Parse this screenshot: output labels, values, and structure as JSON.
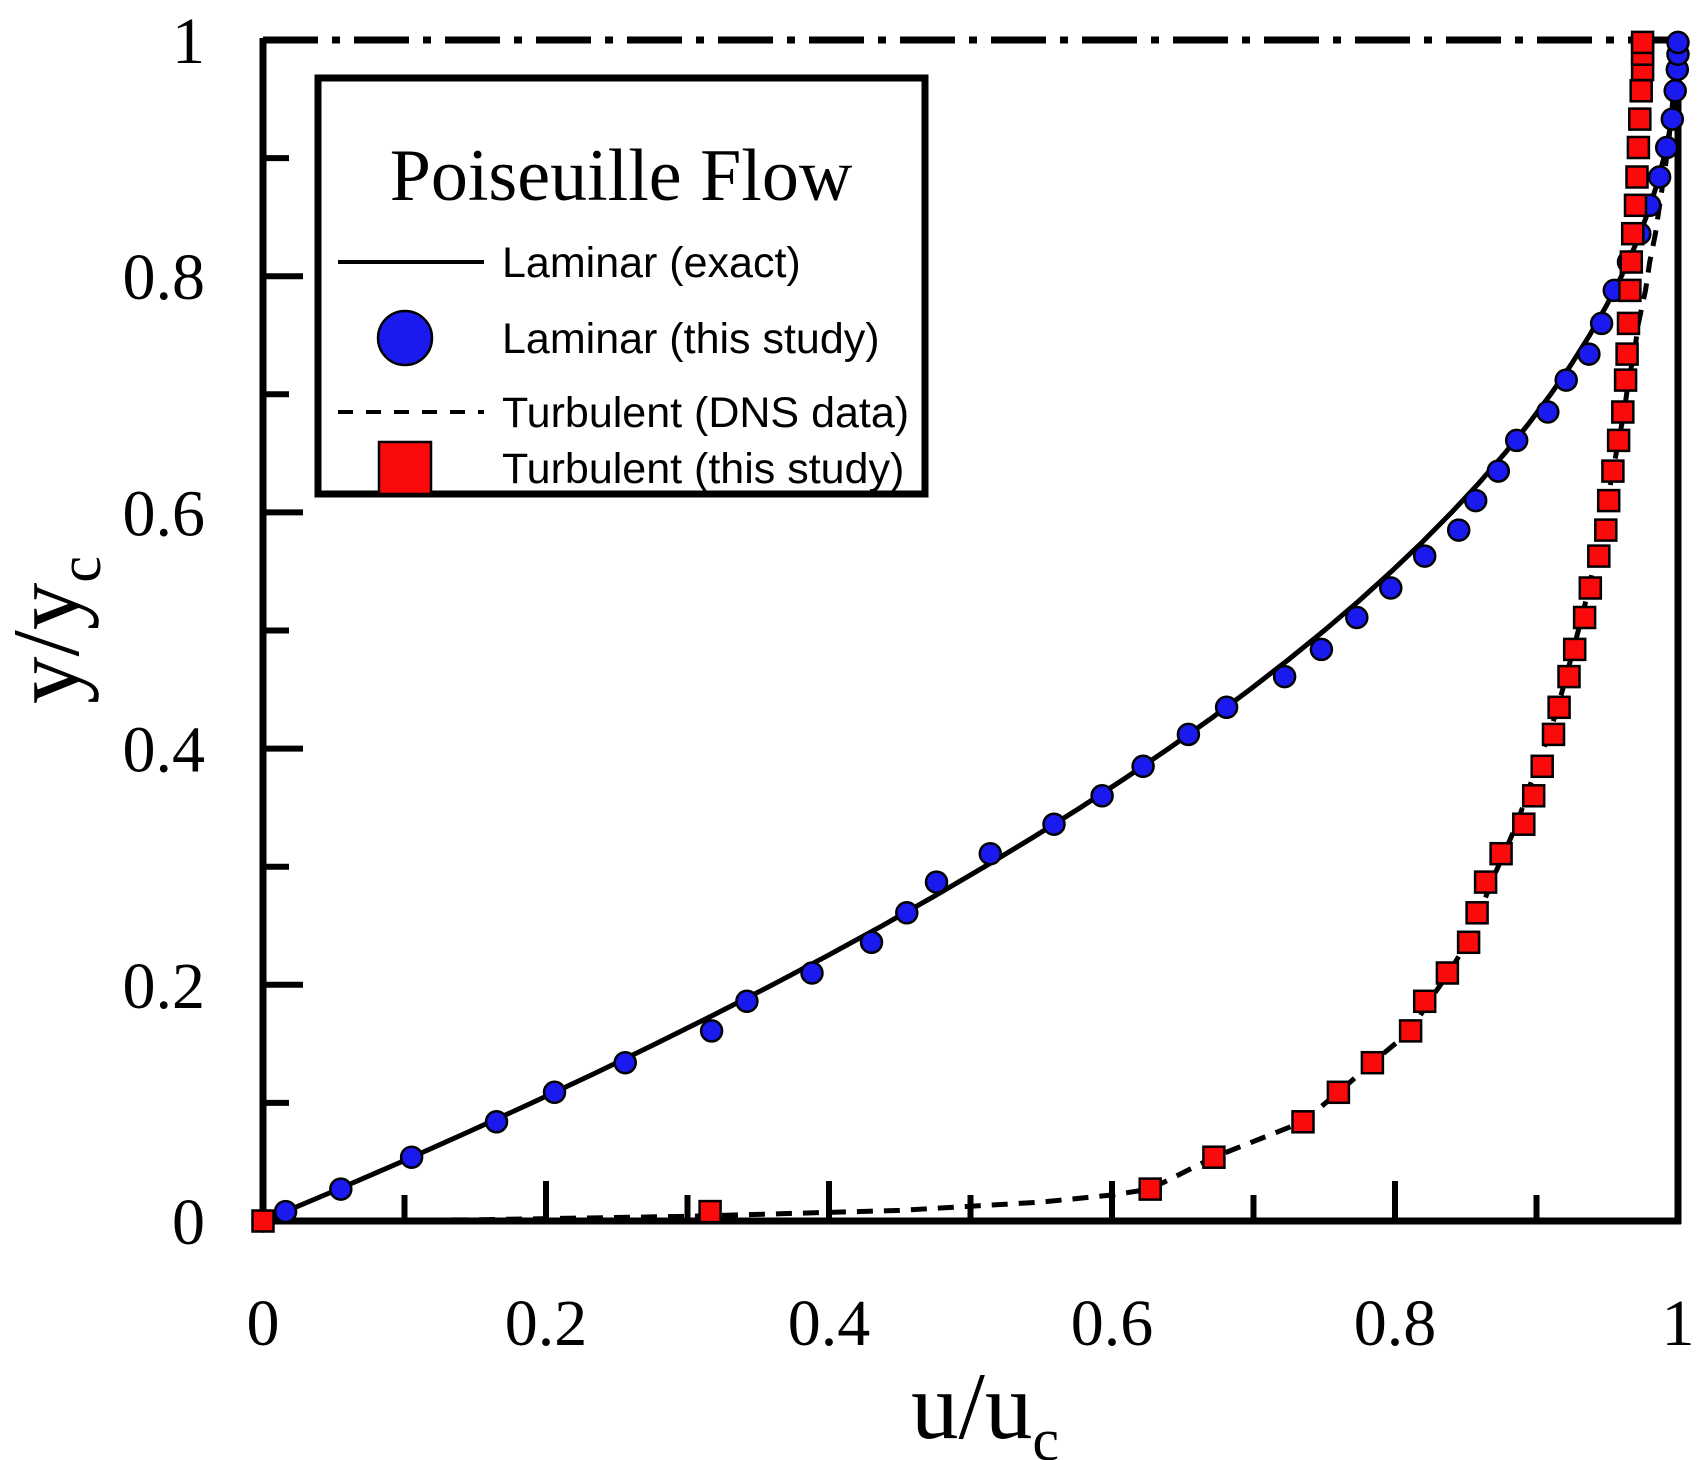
{
  "legend": {
    "title": "Poiseuille Flow",
    "entries": [
      {
        "label": "Laminar (exact)",
        "sample": "solid-line"
      },
      {
        "label": "Laminar (this study)",
        "sample": "blue-circle"
      },
      {
        "label": "Turbulent (DNS data)",
        "sample": "dashed-line"
      },
      {
        "label": "Turbulent (this study)",
        "sample": "red-square"
      }
    ]
  },
  "axes": {
    "x": {
      "label": "u/u_c",
      "label_main": "u/u",
      "label_sub": "c",
      "range": [
        0,
        1
      ],
      "major_ticks": [
        0,
        0.2,
        0.4,
        0.6,
        0.8,
        1
      ],
      "minor_ticks": [
        0.1,
        0.3,
        0.5,
        0.7,
        0.9
      ],
      "tick_labels": [
        "0",
        "0.2",
        "0.4",
        "0.6",
        "0.8",
        "1"
      ]
    },
    "y": {
      "label": "y/y_c",
      "label_main": "y/y",
      "label_sub": "c",
      "range": [
        0,
        1
      ],
      "major_ticks": [
        0,
        0.2,
        0.4,
        0.6,
        0.8,
        1
      ],
      "minor_ticks": [
        0.1,
        0.3,
        0.5,
        0.7,
        0.9
      ],
      "tick_labels": [
        "0",
        "0.2",
        "0.4",
        "0.6",
        "0.8",
        "1"
      ]
    }
  },
  "colors": {
    "laminar_marker": "#1a1aee",
    "turbulent_marker": "#fa0a0a",
    "line": "#000000",
    "background": "#ffffff"
  },
  "chart_data": {
    "type": "scatter",
    "title": "Poiseuille Flow",
    "xlabel": "u/u_c",
    "ylabel": "y/y_c",
    "xlim": [
      0,
      1
    ],
    "ylim": [
      0,
      1
    ],
    "grid": false,
    "legend_position": "upper-left",
    "centerline": {
      "y": 1.0,
      "style": "dash-dot"
    },
    "series": [
      {
        "name": "Laminar (exact)",
        "type": "line",
        "style": "solid",
        "color": "#000000",
        "formula": "u = 2(y/yc) - (y/yc)^2",
        "points": [
          [
            0.0,
            0.0
          ],
          [
            0.0494,
            0.025
          ],
          [
            0.0975,
            0.05
          ],
          [
            0.1444,
            0.075
          ],
          [
            0.19,
            0.1
          ],
          [
            0.2344,
            0.125
          ],
          [
            0.2775,
            0.15
          ],
          [
            0.3194,
            0.175
          ],
          [
            0.36,
            0.2
          ],
          [
            0.3994,
            0.225
          ],
          [
            0.4375,
            0.25
          ],
          [
            0.4744,
            0.275
          ],
          [
            0.51,
            0.3
          ],
          [
            0.5444,
            0.325
          ],
          [
            0.5775,
            0.35
          ],
          [
            0.6094,
            0.375
          ],
          [
            0.64,
            0.4
          ],
          [
            0.6694,
            0.425
          ],
          [
            0.6975,
            0.45
          ],
          [
            0.7244,
            0.475
          ],
          [
            0.75,
            0.5
          ],
          [
            0.7744,
            0.525
          ],
          [
            0.7975,
            0.55
          ],
          [
            0.8194,
            0.575
          ],
          [
            0.84,
            0.6
          ],
          [
            0.8594,
            0.625
          ],
          [
            0.8775,
            0.65
          ],
          [
            0.8944,
            0.675
          ],
          [
            0.91,
            0.7
          ],
          [
            0.9244,
            0.725
          ],
          [
            0.9375,
            0.75
          ],
          [
            0.9494,
            0.775
          ],
          [
            0.96,
            0.8
          ],
          [
            0.9694,
            0.825
          ],
          [
            0.9775,
            0.85
          ],
          [
            0.9844,
            0.875
          ],
          [
            0.99,
            0.9
          ],
          [
            0.9944,
            0.925
          ],
          [
            0.9975,
            0.95
          ],
          [
            0.9994,
            0.975
          ],
          [
            1.0,
            1.0
          ]
        ]
      },
      {
        "name": "Laminar (this study)",
        "type": "scatter",
        "marker": "circle",
        "color": "#1a1aee",
        "points": [
          [
            0.0,
            0.0
          ],
          [
            0.016,
            0.008
          ],
          [
            0.055,
            0.027
          ],
          [
            0.105,
            0.054
          ],
          [
            0.165,
            0.084
          ],
          [
            0.206,
            0.109
          ],
          [
            0.256,
            0.134
          ],
          [
            0.317,
            0.161
          ],
          [
            0.342,
            0.186
          ],
          [
            0.388,
            0.21
          ],
          [
            0.43,
            0.236
          ],
          [
            0.455,
            0.261
          ],
          [
            0.476,
            0.287
          ],
          [
            0.514,
            0.311
          ],
          [
            0.559,
            0.336
          ],
          [
            0.593,
            0.36
          ],
          [
            0.622,
            0.385
          ],
          [
            0.654,
            0.412
          ],
          [
            0.681,
            0.435
          ],
          [
            0.722,
            0.461
          ],
          [
            0.748,
            0.484
          ],
          [
            0.773,
            0.511
          ],
          [
            0.797,
            0.536
          ],
          [
            0.821,
            0.563
          ],
          [
            0.845,
            0.585
          ],
          [
            0.857,
            0.61
          ],
          [
            0.873,
            0.635
          ],
          [
            0.886,
            0.661
          ],
          [
            0.908,
            0.685
          ],
          [
            0.921,
            0.712
          ],
          [
            0.937,
            0.734
          ],
          [
            0.946,
            0.76
          ],
          [
            0.955,
            0.788
          ],
          [
            0.965,
            0.812
          ],
          [
            0.973,
            0.836
          ],
          [
            0.98,
            0.86
          ],
          [
            0.987,
            0.884
          ],
          [
            0.992,
            0.909
          ],
          [
            0.996,
            0.933
          ],
          [
            0.998,
            0.957
          ],
          [
            0.9995,
            0.975
          ],
          [
            1.0,
            0.988
          ],
          [
            1.0,
            0.998
          ]
        ]
      },
      {
        "name": "Turbulent (DNS data)",
        "type": "line",
        "style": "dashed",
        "color": "#000000",
        "points": [
          [
            0.0,
            0.0
          ],
          [
            0.15,
            0.001
          ],
          [
            0.3,
            0.004
          ],
          [
            0.45,
            0.009
          ],
          [
            0.55,
            0.016
          ],
          [
            0.6,
            0.022
          ],
          [
            0.627,
            0.027
          ],
          [
            0.672,
            0.054
          ],
          [
            0.735,
            0.084
          ],
          [
            0.76,
            0.109
          ],
          [
            0.784,
            0.134
          ],
          [
            0.811,
            0.161
          ],
          [
            0.824,
            0.186
          ],
          [
            0.838,
            0.21
          ],
          [
            0.851,
            0.236
          ],
          [
            0.86,
            0.261
          ],
          [
            0.868,
            0.287
          ],
          [
            0.877,
            0.311
          ],
          [
            0.886,
            0.336
          ],
          [
            0.893,
            0.36
          ],
          [
            0.9,
            0.385
          ],
          [
            0.909,
            0.412
          ],
          [
            0.915,
            0.435
          ],
          [
            0.921,
            0.461
          ],
          [
            0.926,
            0.484
          ],
          [
            0.932,
            0.511
          ],
          [
            0.937,
            0.536
          ],
          [
            0.942,
            0.563
          ],
          [
            0.946,
            0.585
          ],
          [
            0.95,
            0.61
          ],
          [
            0.954,
            0.635
          ],
          [
            0.958,
            0.661
          ],
          [
            0.962,
            0.685
          ],
          [
            0.965,
            0.712
          ],
          [
            0.969,
            0.734
          ],
          [
            0.972,
            0.76
          ],
          [
            0.977,
            0.788
          ],
          [
            0.98,
            0.812
          ],
          [
            0.984,
            0.836
          ],
          [
            0.987,
            0.86
          ],
          [
            0.99,
            0.884
          ],
          [
            0.993,
            0.909
          ],
          [
            0.995,
            0.933
          ],
          [
            0.997,
            0.957
          ],
          [
            0.999,
            0.98
          ],
          [
            1.0,
            1.0
          ]
        ]
      },
      {
        "name": "Turbulent (this study)",
        "type": "scatter",
        "marker": "square",
        "color": "#fa0a0a",
        "points": [
          [
            0.0,
            0.0
          ],
          [
            0.316,
            0.008
          ],
          [
            0.627,
            0.027
          ],
          [
            0.672,
            0.054
          ],
          [
            0.735,
            0.084
          ],
          [
            0.76,
            0.109
          ],
          [
            0.784,
            0.134
          ],
          [
            0.811,
            0.161
          ],
          [
            0.821,
            0.186
          ],
          [
            0.837,
            0.21
          ],
          [
            0.852,
            0.236
          ],
          [
            0.858,
            0.261
          ],
          [
            0.864,
            0.287
          ],
          [
            0.875,
            0.311
          ],
          [
            0.891,
            0.336
          ],
          [
            0.898,
            0.36
          ],
          [
            0.904,
            0.385
          ],
          [
            0.912,
            0.412
          ],
          [
            0.916,
            0.435
          ],
          [
            0.923,
            0.461
          ],
          [
            0.927,
            0.484
          ],
          [
            0.934,
            0.511
          ],
          [
            0.938,
            0.536
          ],
          [
            0.944,
            0.563
          ],
          [
            0.949,
            0.585
          ],
          [
            0.951,
            0.61
          ],
          [
            0.954,
            0.635
          ],
          [
            0.958,
            0.661
          ],
          [
            0.961,
            0.685
          ],
          [
            0.963,
            0.712
          ],
          [
            0.964,
            0.734
          ],
          [
            0.965,
            0.76
          ],
          [
            0.966,
            0.788
          ],
          [
            0.967,
            0.812
          ],
          [
            0.968,
            0.836
          ],
          [
            0.97,
            0.86
          ],
          [
            0.971,
            0.884
          ],
          [
            0.972,
            0.909
          ],
          [
            0.973,
            0.933
          ],
          [
            0.974,
            0.957
          ],
          [
            0.975,
            0.975
          ],
          [
            0.975,
            0.988
          ],
          [
            0.975,
            0.998
          ]
        ]
      }
    ]
  }
}
